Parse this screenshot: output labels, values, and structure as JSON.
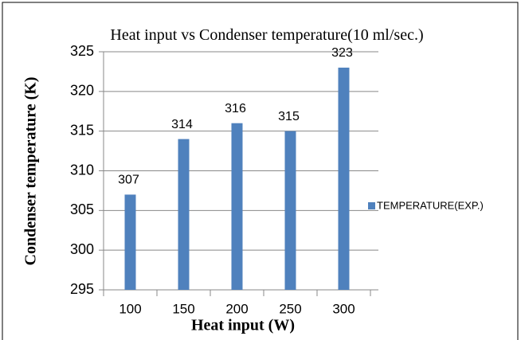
{
  "chart_data": {
    "type": "bar",
    "title": "Heat input vs Condenser temperature(10 ml/sec.)",
    "xlabel": "Heat input (W)",
    "ylabel": "Condenser temperature (K)",
    "categories": [
      "100",
      "150",
      "200",
      "250",
      "300"
    ],
    "series": [
      {
        "name": "TEMPERATURE(EXP.)",
        "color": "#4f81bd",
        "values": [
          307,
          314,
          316,
          315,
          323
        ]
      }
    ],
    "ylim": [
      295,
      325
    ],
    "yticks": [
      295,
      300,
      305,
      310,
      315,
      320,
      325
    ],
    "grid": true,
    "legend": "right"
  }
}
